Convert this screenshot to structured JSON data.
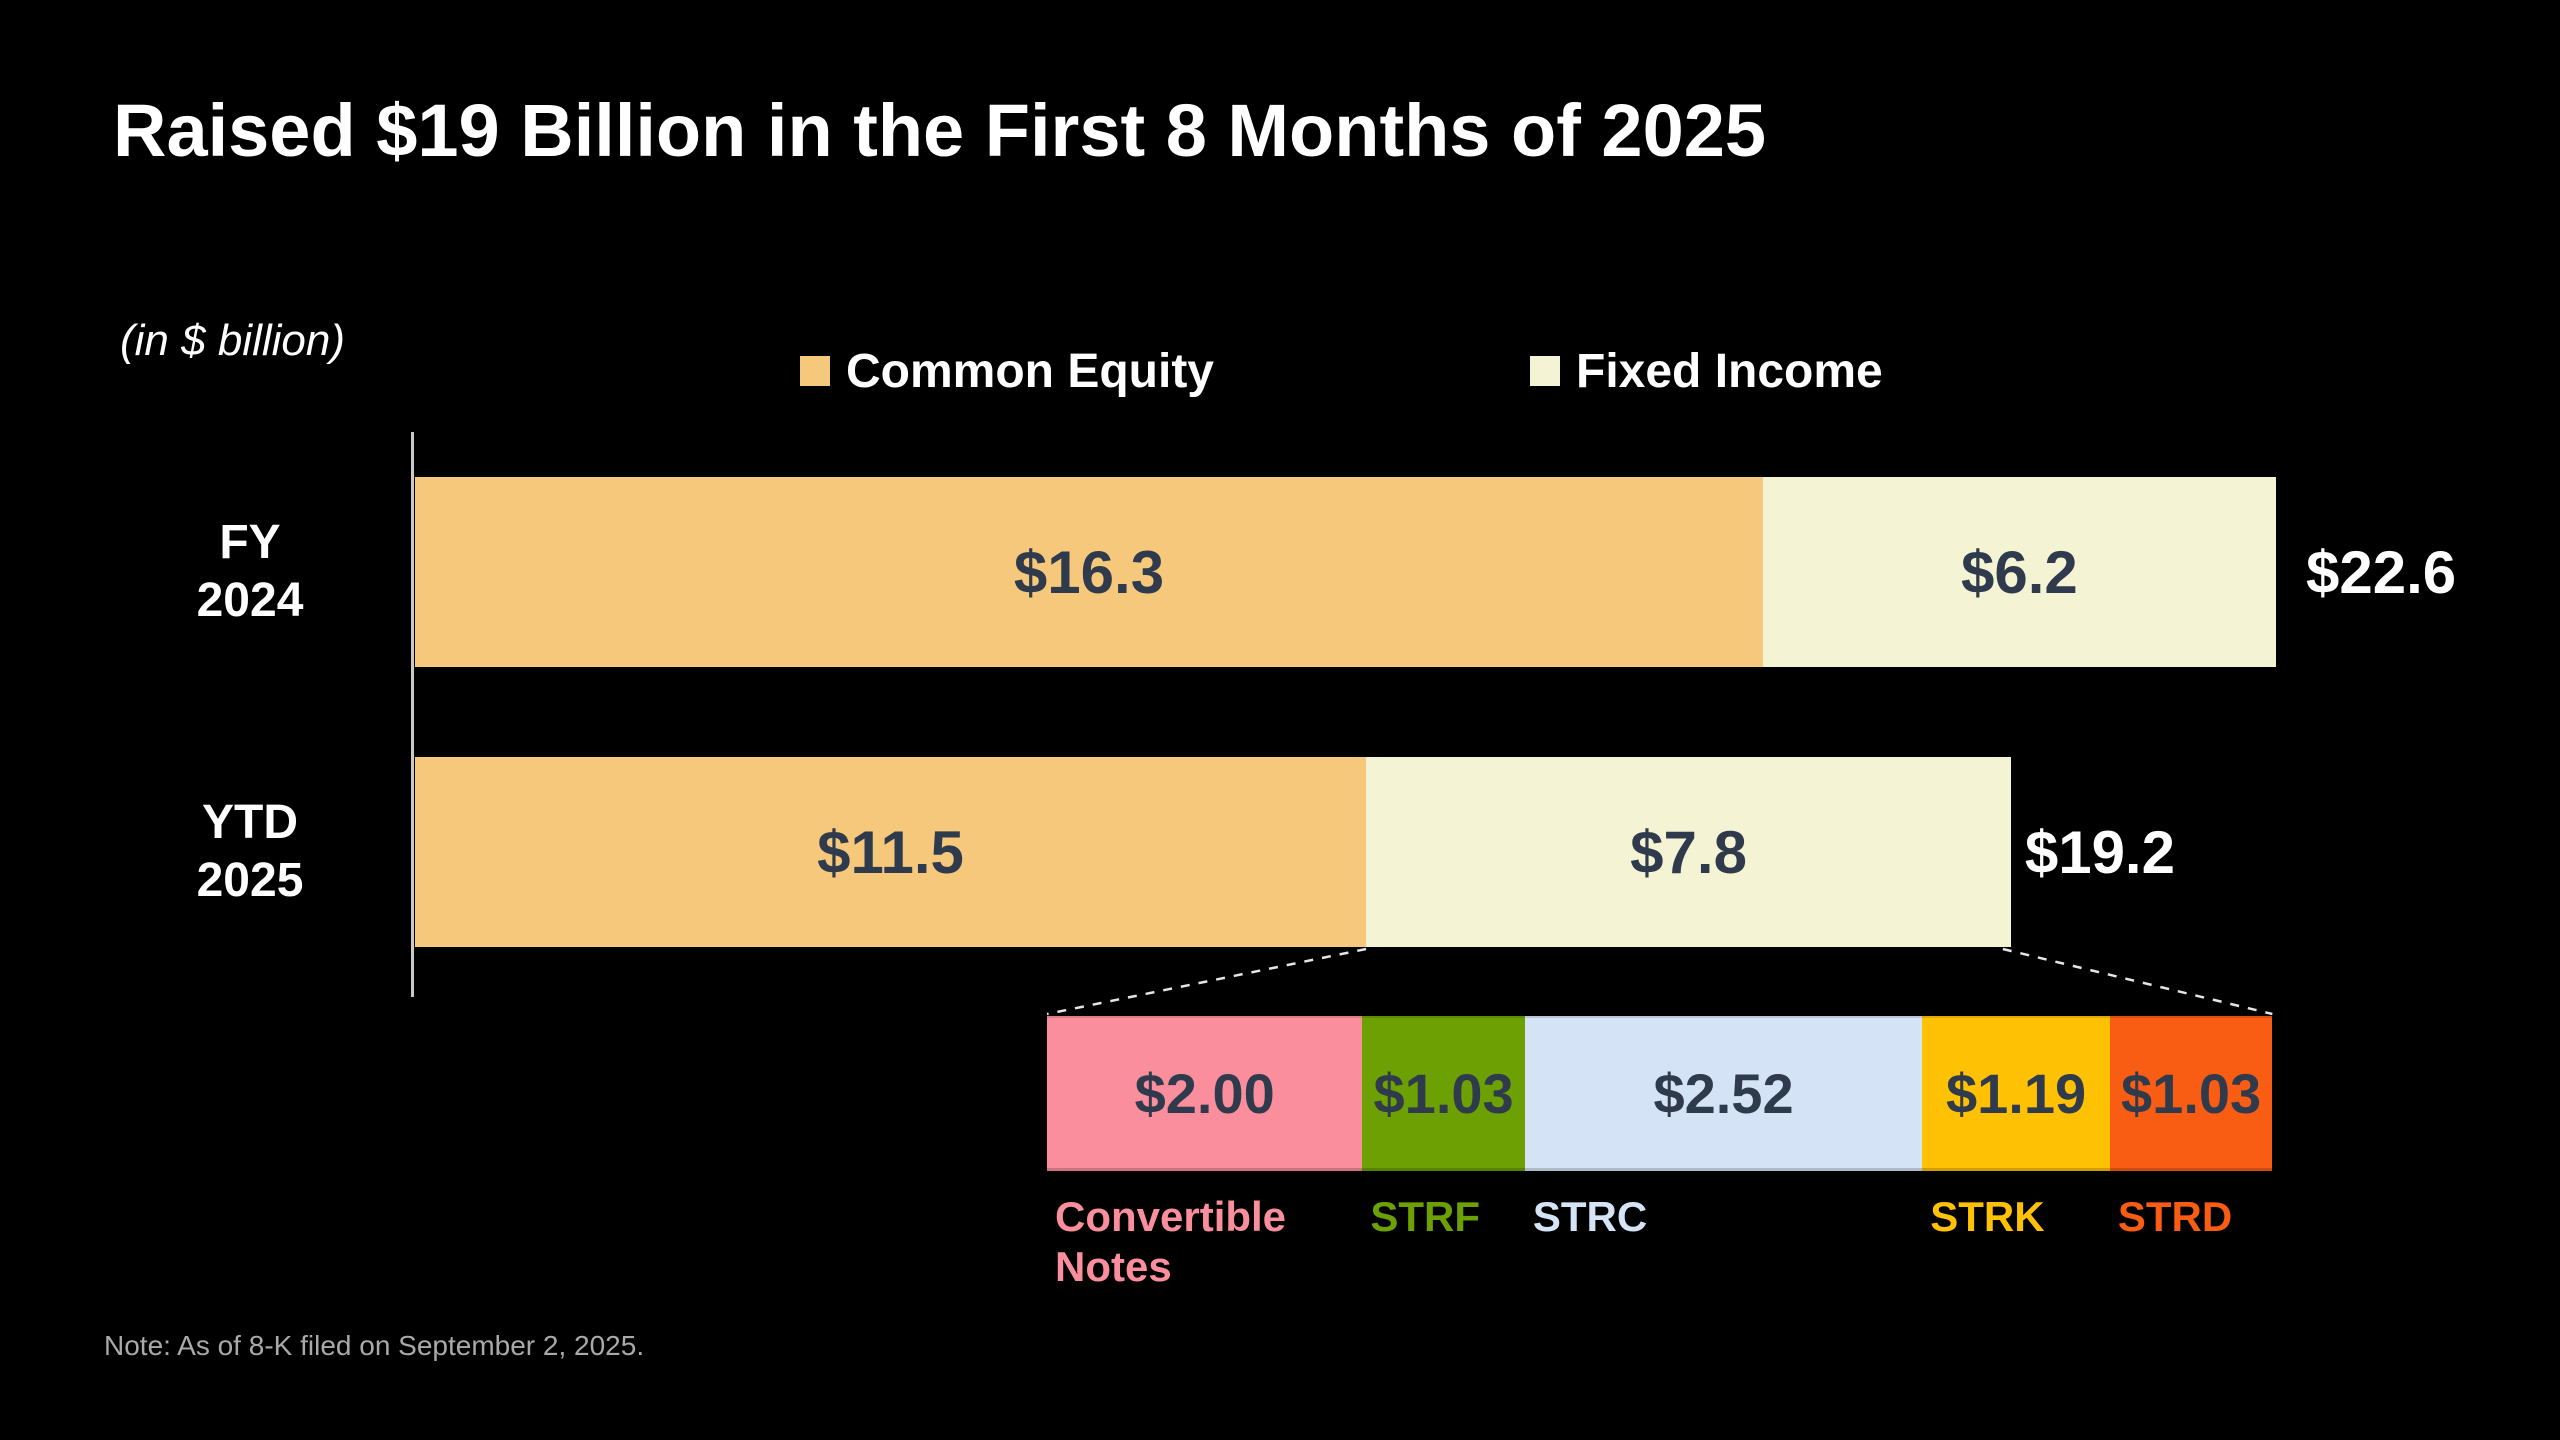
{
  "title": "Raised $19 Billion in the First 8 Months of 2025",
  "units_label": "(in $ billion)",
  "note": "Note: As of 8-K filed on September 2, 2025.",
  "colors": {
    "background": "#000000",
    "common_equity": "#F6C87C",
    "fixed_income": "#F4F4D4",
    "value_text": "#2F3B4C",
    "total_text": "#FFFFFF",
    "axis_line": "#C9C9C9",
    "connector_line": "#E5E5E5",
    "note_text": "#A9A9A9",
    "convertible_notes": "#FB8E9D",
    "strf": "#6CA003",
    "strc": "#D5E3F7",
    "strk": "#FFC103",
    "strd": "#F95D13"
  },
  "chart_data": {
    "type": "bar",
    "orientation": "horizontal",
    "stacked": true,
    "title": "Raised $19 Billion in the First 8 Months of 2025",
    "units": "$ billion",
    "legend_position": "top",
    "categories": [
      "FY\n2024",
      "YTD\n2025"
    ],
    "series": [
      {
        "name": "Common Equity",
        "color_key": "common_equity",
        "values": [
          16.3,
          11.5
        ],
        "labels": [
          "$16.3",
          "$11.5"
        ]
      },
      {
        "name": "Fixed Income",
        "color_key": "fixed_income",
        "values": [
          6.2,
          7.8
        ],
        "labels": [
          "$6.2",
          "$7.8"
        ]
      }
    ],
    "totals": [
      22.6,
      19.2
    ],
    "total_labels": [
      "$22.6",
      "$19.2"
    ],
    "breakdown": {
      "of": "Fixed Income, YTD 2025",
      "total": 7.77,
      "segments": [
        {
          "name": "Convertible Notes",
          "color_key": "convertible_notes",
          "value": 2.0,
          "label": "$2.00"
        },
        {
          "name": "STRF",
          "color_key": "strf",
          "value": 1.03,
          "label": "$1.03"
        },
        {
          "name": "STRC",
          "color_key": "strc",
          "value": 2.52,
          "label": "$2.52"
        },
        {
          "name": "STRK",
          "color_key": "strk",
          "value": 1.19,
          "label": "$1.19"
        },
        {
          "name": "STRD",
          "color_key": "strd",
          "value": 1.03,
          "label": "$1.03"
        }
      ]
    }
  }
}
